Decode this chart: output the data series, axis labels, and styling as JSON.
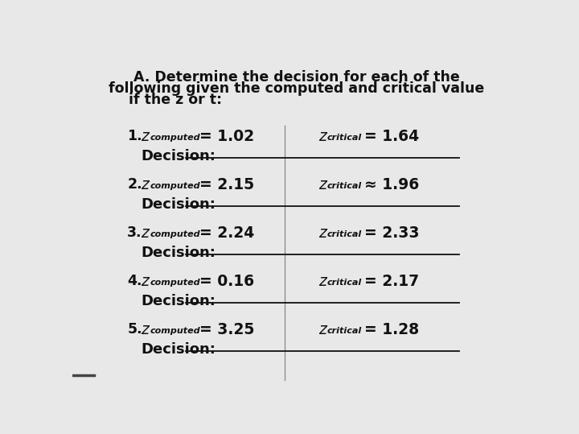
{
  "title_line1": "A. Determine the decision for each of the",
  "title_line2": "following given the computed and critical value",
  "title_line3": "if the z or t:",
  "items": [
    {
      "num": "1.",
      "computed_val": "1.02",
      "critical_val": "1.64",
      "critical_sign": "="
    },
    {
      "num": "2.",
      "computed_val": "2.15",
      "critical_val": "1.96",
      "critical_sign": "≈"
    },
    {
      "num": "3.",
      "computed_val": "2.24",
      "critical_val": "2.33",
      "critical_sign": "="
    },
    {
      "num": "4.",
      "computed_val": "0.16",
      "critical_val": "2.17",
      "critical_sign": "="
    },
    {
      "num": "5.",
      "computed_val": "3.25",
      "critical_val": "1.28",
      "critical_sign": "="
    }
  ],
  "bg_color": "#e8e8e8",
  "text_color": "#111111",
  "line_color": "#111111",
  "divider_color": "#888888",
  "title_fontsize": 12.5,
  "item_fontsize": 12.5,
  "sub_fontsize": 8.0,
  "decision_fontsize": 13.0
}
